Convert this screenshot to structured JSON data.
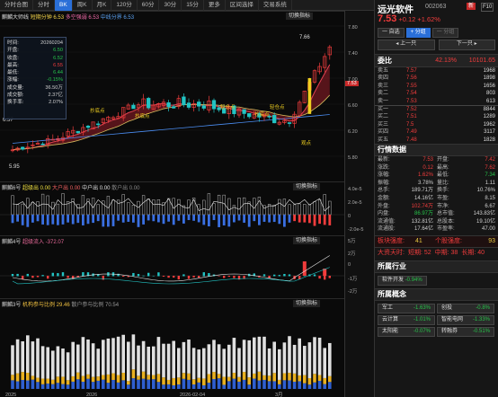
{
  "toolbar": [
    "分时合图",
    "分时",
    "BK",
    "周K",
    "月K",
    "120分",
    "60分",
    "30分",
    "15分",
    "更多",
    "区间选择",
    "交易系统"
  ],
  "main": {
    "title": "麒麟大师线",
    "ma": "短期分钟 6.53",
    "ma2": "多空强弱 6.53",
    "ma3": "中线分界 6.53",
    "switch": "切换指标",
    "peak_label": "7.66",
    "low_label": "5.95",
    "left_price": "6.57",
    "cur_price_tag": "7.53",
    "axis": [
      "7.80",
      "7.40",
      "7.00",
      "6.60",
      "6.20",
      "5.80"
    ],
    "markers": [
      "抄底点",
      "抄底点",
      "轻仓点",
      "抄底点",
      "轻仓点",
      "观点"
    ],
    "info": {
      "time": {
        "k": "时间:",
        "v": "20260204"
      },
      "open": {
        "k": "开盘:",
        "v": "6.50"
      },
      "close": {
        "k": "收盘:",
        "v": "6.52"
      },
      "high": {
        "k": "最高:",
        "v": "6.55"
      },
      "low": {
        "k": "最低:",
        "v": "6.44"
      },
      "chg": {
        "k": "涨幅:",
        "v": "-0.15%"
      },
      "vol": {
        "k": "成交量:",
        "v": "36.50万"
      },
      "amt": {
        "k": "成交额:",
        "v": "2.37亿"
      },
      "turn": {
        "k": "换手率:",
        "v": "2.07%"
      }
    }
  },
  "p2": {
    "title": "麒麟6号",
    "l1": "超级出 0.00",
    "l2": "大户出 0.00",
    "l3": "中户出 0.00",
    "l4": "散户出 0.00",
    "switch": "切换指标",
    "axis": [
      "4.0e-5",
      "2.0e-5",
      "0",
      "-2.0e-5"
    ]
  },
  "p3": {
    "title": "麒麟4号",
    "l1": "超级流入 -372.07",
    "switch": "切换指标",
    "axis": [
      "5万",
      "2万",
      "0",
      "-1万",
      "-2万"
    ]
  },
  "p4": {
    "title": "麒麟3号",
    "l1": "机构参与比例 29.46",
    "l2": "散户参与比例 70.54",
    "switch": "切换指标",
    "dates": [
      "2025",
      "2026",
      "2026-02-04",
      "3月"
    ]
  },
  "quote": {
    "name": "远光软件",
    "code": "002063",
    "badge": "新",
    "icon": "F10",
    "price": "7.53",
    "change": "+0.12",
    "pct": "+1.62%",
    "btn_self": "一 自选",
    "btn_fen": "+ 分组",
    "btn_nav": "一 分组",
    "prev": "上一只",
    "next": "下一只",
    "webi_label": "委比",
    "webi": "42.13%",
    "wecha": "10101.65",
    "sells": [
      {
        "k": "卖五",
        "p": "7.57",
        "v": "1968"
      },
      {
        "k": "卖四",
        "p": "7.56",
        "v": "1898"
      },
      {
        "k": "卖三",
        "p": "7.55",
        "v": "1656"
      },
      {
        "k": "卖二",
        "p": "7.54",
        "v": "803"
      },
      {
        "k": "卖一",
        "p": "7.53",
        "v": "613"
      }
    ],
    "buys": [
      {
        "k": "买一",
        "p": "7.52",
        "v": "8844"
      },
      {
        "k": "买二",
        "p": "7.51",
        "v": "1289"
      },
      {
        "k": "买三",
        "p": "7.5",
        "v": "1962"
      },
      {
        "k": "买四",
        "p": "7.49",
        "v": "3117"
      },
      {
        "k": "买五",
        "p": "7.48",
        "v": "1828"
      }
    ],
    "data_title": "行情数据",
    "fund": [
      [
        "最新:",
        "7.53",
        "开盘:",
        "7.42"
      ],
      [
        "涨跌:",
        "0.12",
        "最高:",
        "7.62"
      ],
      [
        "涨幅:",
        "1.62%",
        "最低:",
        "7.34"
      ],
      [
        "振幅:",
        "3.78%",
        "量比:",
        "1.11"
      ],
      [
        "总手:",
        "189.71万",
        "换手:",
        "10.76%"
      ],
      [
        "金额:",
        "14.16亿",
        "市盈:",
        "8.15"
      ],
      [
        "外盘:",
        "102.74万",
        "市净:",
        "6.67"
      ],
      [
        "内盘:",
        "86.97万",
        "总市值:",
        "143.83亿"
      ],
      [
        "流通值:",
        "132.81亿",
        "总股本:",
        "19.10亿"
      ],
      [
        "流通股:",
        "17.64亿",
        "市盈率:",
        "47.00"
      ]
    ],
    "strength": {
      "k1": "板块强度:",
      "v1": "41",
      "k2": "个股强度:",
      "v2": "93"
    },
    "days": {
      "k": "大资天时:",
      "a": "短期: 52",
      "b": "中期: 38",
      "c": "长期: 40"
    },
    "ind_title": "所属行业",
    "ind": {
      "name": "软件开发",
      "pct": "-0.94%"
    },
    "con_title": "所属概念",
    "concepts": [
      {
        "n": "军工",
        "p": "-1.63%"
      },
      {
        "n": "创投",
        "p": "-0.8%"
      },
      {
        "n": "云计算",
        "p": "-1.01%"
      },
      {
        "n": "智能电网",
        "p": "-1.33%"
      },
      {
        "n": "太阳能",
        "p": "-0.07%"
      },
      {
        "n": "转融券",
        "p": "-0.51%"
      }
    ]
  }
}
